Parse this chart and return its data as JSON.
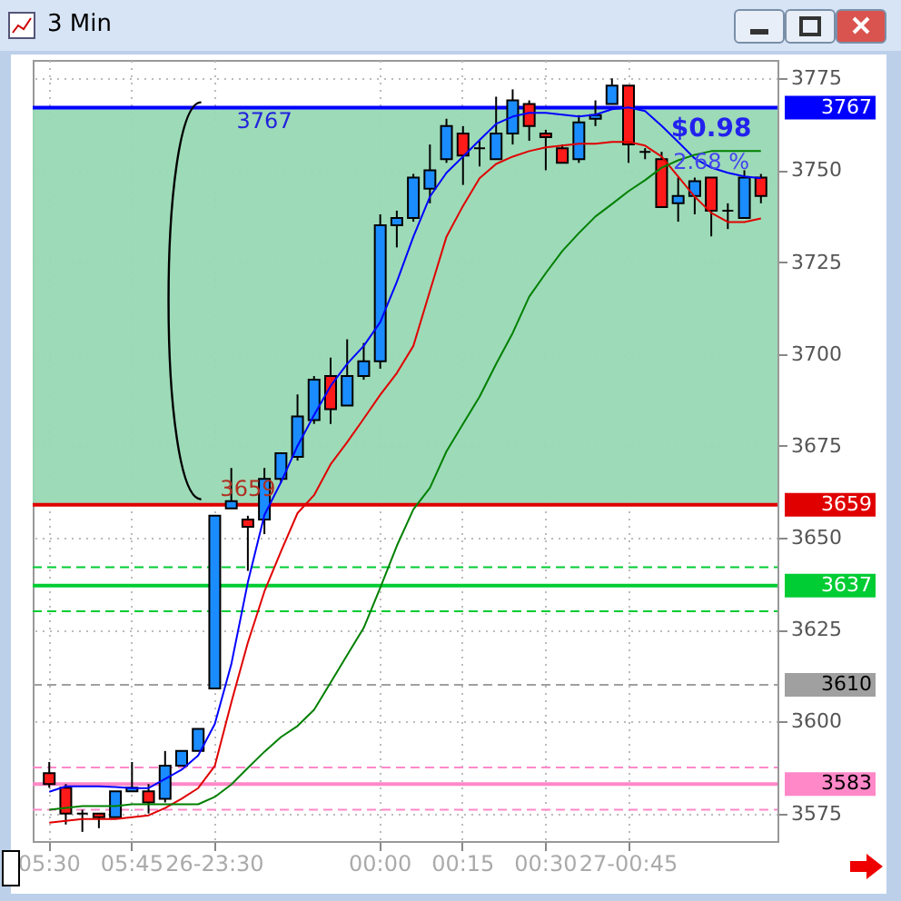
{
  "chart_data": {
    "type": "candlestick",
    "title": "3 Min",
    "categories": [
      "05:30",
      null,
      null,
      null,
      null,
      "05:45",
      null,
      null,
      null,
      null,
      "26-23:30",
      null,
      null,
      null,
      null,
      null,
      null,
      null,
      null,
      null,
      "00:00",
      null,
      null,
      null,
      null,
      "00:15",
      null,
      null,
      null,
      null,
      "00:30",
      null,
      null,
      null,
      null,
      "27-00:45",
      null,
      null,
      null,
      null,
      null,
      null,
      null,
      null
    ],
    "ohlc": [
      [
        3586,
        3589,
        3582,
        3583
      ],
      [
        3582,
        3583,
        3572,
        3575
      ],
      [
        3575,
        3576,
        3570,
        3575
      ],
      [
        3575,
        3575,
        3571,
        3574
      ],
      [
        3574,
        3581,
        3574,
        3581
      ],
      [
        3581,
        3589,
        3581,
        3582
      ],
      [
        3581,
        3583,
        3575,
        3578
      ],
      [
        3579,
        3592,
        3578,
        3588
      ],
      [
        3588,
        3592,
        3588,
        3592
      ],
      [
        3592,
        3598,
        3592,
        3598
      ],
      [
        3609,
        3656,
        3609,
        3656
      ],
      [
        3658,
        3669,
        3658,
        3660
      ],
      [
        3655,
        3656,
        3641,
        3653
      ],
      [
        3655,
        3669,
        3651,
        3666
      ],
      [
        3666,
        3673,
        3665,
        3673
      ],
      [
        3672,
        3689,
        3671,
        3683
      ],
      [
        3682,
        3694,
        3681,
        3693
      ],
      [
        3694,
        3699,
        3681,
        3685
      ],
      [
        3686,
        3704,
        3686,
        3694
      ],
      [
        3694,
        3703,
        3693,
        3698
      ],
      [
        3698,
        3738,
        3696,
        3735
      ],
      [
        3735,
        3739,
        3729,
        3737
      ],
      [
        3737,
        3749,
        3736,
        3748
      ],
      [
        3745,
        3757,
        3741,
        3750
      ],
      [
        3753,
        3764,
        3752,
        3762
      ],
      [
        3760,
        3762,
        3746,
        3754
      ],
      [
        3756,
        3758,
        3751,
        3756
      ],
      [
        3753,
        3770,
        3753,
        3760
      ],
      [
        3760,
        3772,
        3757,
        3769
      ],
      [
        3768,
        3769,
        3758,
        3762
      ],
      [
        3760,
        3761,
        3750,
        3759
      ],
      [
        3756,
        3757,
        3752,
        3752
      ],
      [
        3753,
        3765,
        3752,
        3763
      ],
      [
        3764,
        3769,
        3762,
        3765
      ],
      [
        3768,
        3775,
        3768,
        3773
      ],
      [
        3773,
        3773,
        3752,
        3757
      ],
      [
        3755,
        3756,
        3753,
        3755
      ],
      [
        3753,
        3755,
        3740,
        3740
      ],
      [
        3741,
        3748,
        3736,
        3743
      ],
      [
        3743,
        3748,
        3738,
        3747
      ],
      [
        3748,
        3748,
        3732,
        3739
      ],
      [
        3739,
        3741,
        3734,
        3739
      ],
      [
        3737,
        3750,
        3737,
        3748
      ],
      [
        3748,
        3749,
        3741,
        3743
      ]
    ],
    "colors": [
      "#ff1a1a",
      "#ff1a1a",
      "#000000",
      "#ff1a1a",
      "#1a8cff",
      "#1a8cff",
      "#ff1a1a",
      "#1a8cff",
      "#1a8cff",
      "#1a8cff",
      "#1a8cff",
      "#1a8cff",
      "#ff1a1a",
      "#1a8cff",
      "#1a8cff",
      "#1a8cff",
      "#1a8cff",
      "#ff1a1a",
      "#1a8cff",
      "#1a8cff",
      "#1a8cff",
      "#1a8cff",
      "#1a8cff",
      "#1a8cff",
      "#1a8cff",
      "#ff1a1a",
      "#000000",
      "#1a8cff",
      "#1a8cff",
      "#ff1a1a",
      "#ff1a1a",
      "#ff1a1a",
      "#1a8cff",
      "#1a8cff",
      "#1a8cff",
      "#ff1a1a",
      "#000000",
      "#ff1a1a",
      "#1a8cff",
      "#1a8cff",
      "#ff1a1a",
      "#000000",
      "#1a8cff",
      "#ff1a1a"
    ],
    "series": [
      {
        "type": "line",
        "color": "#0000ff",
        "values": [
          3580.9,
          3582.4,
          3582.4,
          3582.4,
          3582.2,
          3581.9,
          3581.9,
          3584.4,
          3586.9,
          3590.8,
          3599.3,
          3615.6,
          3637.9,
          3656.2,
          3665.1,
          3675,
          3683.4,
          3691.3,
          3697.3,
          3702.2,
          3708.7,
          3719.6,
          3731.9,
          3742.8,
          3749.3,
          3753.7,
          3758.2,
          3762.6,
          3764.6,
          3765.6,
          3765.6,
          3765.1,
          3764.6,
          3765.1,
          3766.6,
          3767.1,
          3766.1,
          3762.1,
          3757.7,
          3753.2,
          3750.7,
          3749.3,
          3748.3,
          3747.8
        ]
      },
      {
        "type": "line",
        "color": "#e00000",
        "values": [
          3572.5,
          3573,
          3573.5,
          3573.5,
          3573.5,
          3574,
          3574.5,
          3576.5,
          3579,
          3581.9,
          3587.9,
          3605.2,
          3621.5,
          3635.4,
          3646.3,
          3656.7,
          3661.6,
          3670,
          3676,
          3682.4,
          3688.9,
          3694.8,
          3702.2,
          3717.1,
          3731.9,
          3740.3,
          3747.8,
          3751.7,
          3753.7,
          3755.2,
          3756.2,
          3756.7,
          3757.2,
          3757.2,
          3757.7,
          3757.7,
          3756.7,
          3753.7,
          3748.3,
          3742.8,
          3738.4,
          3735.9,
          3735.9,
          3736.9
        ]
      },
      {
        "type": "line",
        "color": "#008000",
        "values": [
          3576,
          3576.5,
          3577,
          3577,
          3577,
          3577.5,
          3577.5,
          3577.5,
          3577.5,
          3577.5,
          3579.5,
          3582.9,
          3587.4,
          3591.8,
          3595.8,
          3598.8,
          3603.2,
          3610.6,
          3618.1,
          3625.5,
          3636.4,
          3647.8,
          3657.7,
          3663.6,
          3673.5,
          3681,
          3688.4,
          3697.3,
          3705.7,
          3715.6,
          3722,
          3728,
          3732.9,
          3737.4,
          3740.8,
          3744.3,
          3747.3,
          3750.7,
          3752.7,
          3754.2,
          3755.2,
          3755.2,
          3755.2,
          3755.2
        ]
      }
    ],
    "ylim": [
      3567.5,
      3780
    ],
    "yticks": [
      3575,
      3600,
      3625,
      3650,
      3675,
      3700,
      3725,
      3750,
      3775
    ],
    "grid": true,
    "ref_lines": [
      {
        "axis": "y",
        "value": 3767,
        "label": "3767",
        "color": "#0000ff"
      },
      {
        "axis": "y",
        "value": 3659,
        "label": "3659",
        "color": "#e00000"
      },
      {
        "axis": "y",
        "value": 3642,
        "color": "#00cc33",
        "line_style": "dashed"
      },
      {
        "axis": "y",
        "value": 3637,
        "label": "3637",
        "color": "#00cc33"
      },
      {
        "axis": "y",
        "value": 3630,
        "color": "#00cc33",
        "line_style": "dashed"
      },
      {
        "axis": "y",
        "value": 3610,
        "label": "3610",
        "color": "#a0a0a0",
        "line_style": "dashed"
      },
      {
        "axis": "y",
        "value": 3587.5,
        "color": "#ff88c8",
        "line_style": "dashed"
      },
      {
        "axis": "y",
        "value": 3583,
        "label": "3583",
        "color": "#ff88c8"
      },
      {
        "axis": "y",
        "value": 3576,
        "color": "#ff88c8",
        "line_style": "dashed"
      }
    ],
    "bands": [
      {
        "axis": "y",
        "from": 3659,
        "to": 3767,
        "color": "#98d8b4"
      }
    ],
    "annotations": [
      {
        "text": "3767",
        "y": 3767
      },
      {
        "text": "3659",
        "y": 3659
      },
      "$0.98",
      "2.68 %"
    ]
  }
}
